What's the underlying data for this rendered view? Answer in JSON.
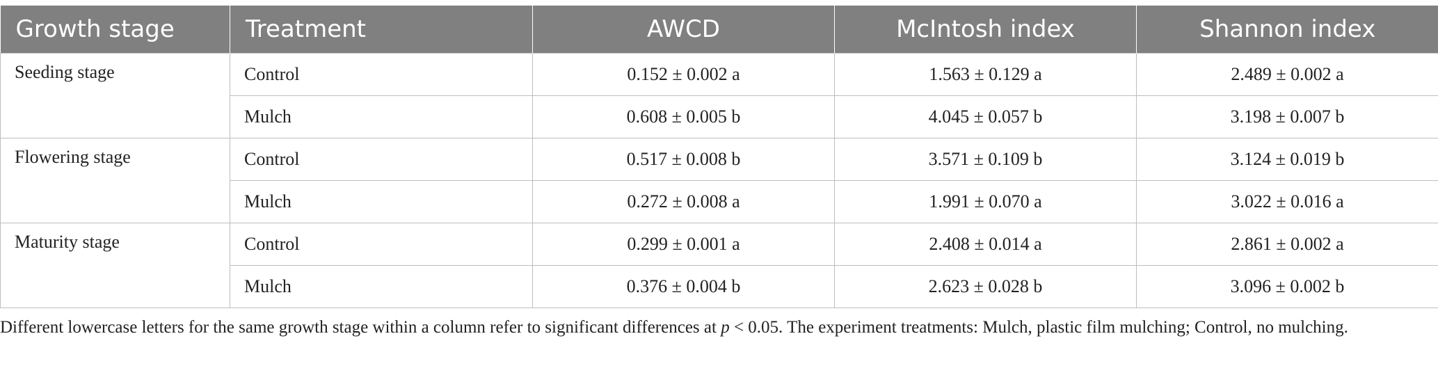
{
  "table": {
    "headers": [
      "Growth stage",
      "Treatment",
      "AWCD",
      "McIntosh index",
      "Shannon index"
    ],
    "groups": [
      {
        "stage": "Seeding stage",
        "rows": [
          {
            "treatment": "Control",
            "awcd": "0.152 ± 0.002 a",
            "mcintosh": "1.563 ± 0.129 a",
            "shannon": "2.489 ± 0.002 a"
          },
          {
            "treatment": "Mulch",
            "awcd": "0.608 ± 0.005 b",
            "mcintosh": "4.045 ± 0.057 b",
            "shannon": "3.198 ± 0.007 b"
          }
        ]
      },
      {
        "stage": "Flowering stage",
        "rows": [
          {
            "treatment": "Control",
            "awcd": "0.517 ± 0.008 b",
            "mcintosh": "3.571 ± 0.109 b",
            "shannon": "3.124 ± 0.019 b"
          },
          {
            "treatment": "Mulch",
            "awcd": "0.272 ± 0.008 a",
            "mcintosh": "1.991 ± 0.070 a",
            "shannon": "3.022 ± 0.016 a"
          }
        ]
      },
      {
        "stage": "Maturity stage",
        "rows": [
          {
            "treatment": "Control",
            "awcd": "0.299 ± 0.001 a",
            "mcintosh": "2.408 ± 0.014 a",
            "shannon": "2.861 ± 0.002 a"
          },
          {
            "treatment": "Mulch",
            "awcd": "0.376 ± 0.004 b",
            "mcintosh": "2.623 ± 0.028 b",
            "shannon": "3.096 ± 0.002 b"
          }
        ]
      }
    ]
  },
  "footnote": {
    "part1": "Different lowercase letters for the same growth stage within a column refer to significant differences at ",
    "p": "p",
    "part2": " < 0.05. The experiment treatments: Mulch, plastic film mulching; Control, no mulching."
  }
}
